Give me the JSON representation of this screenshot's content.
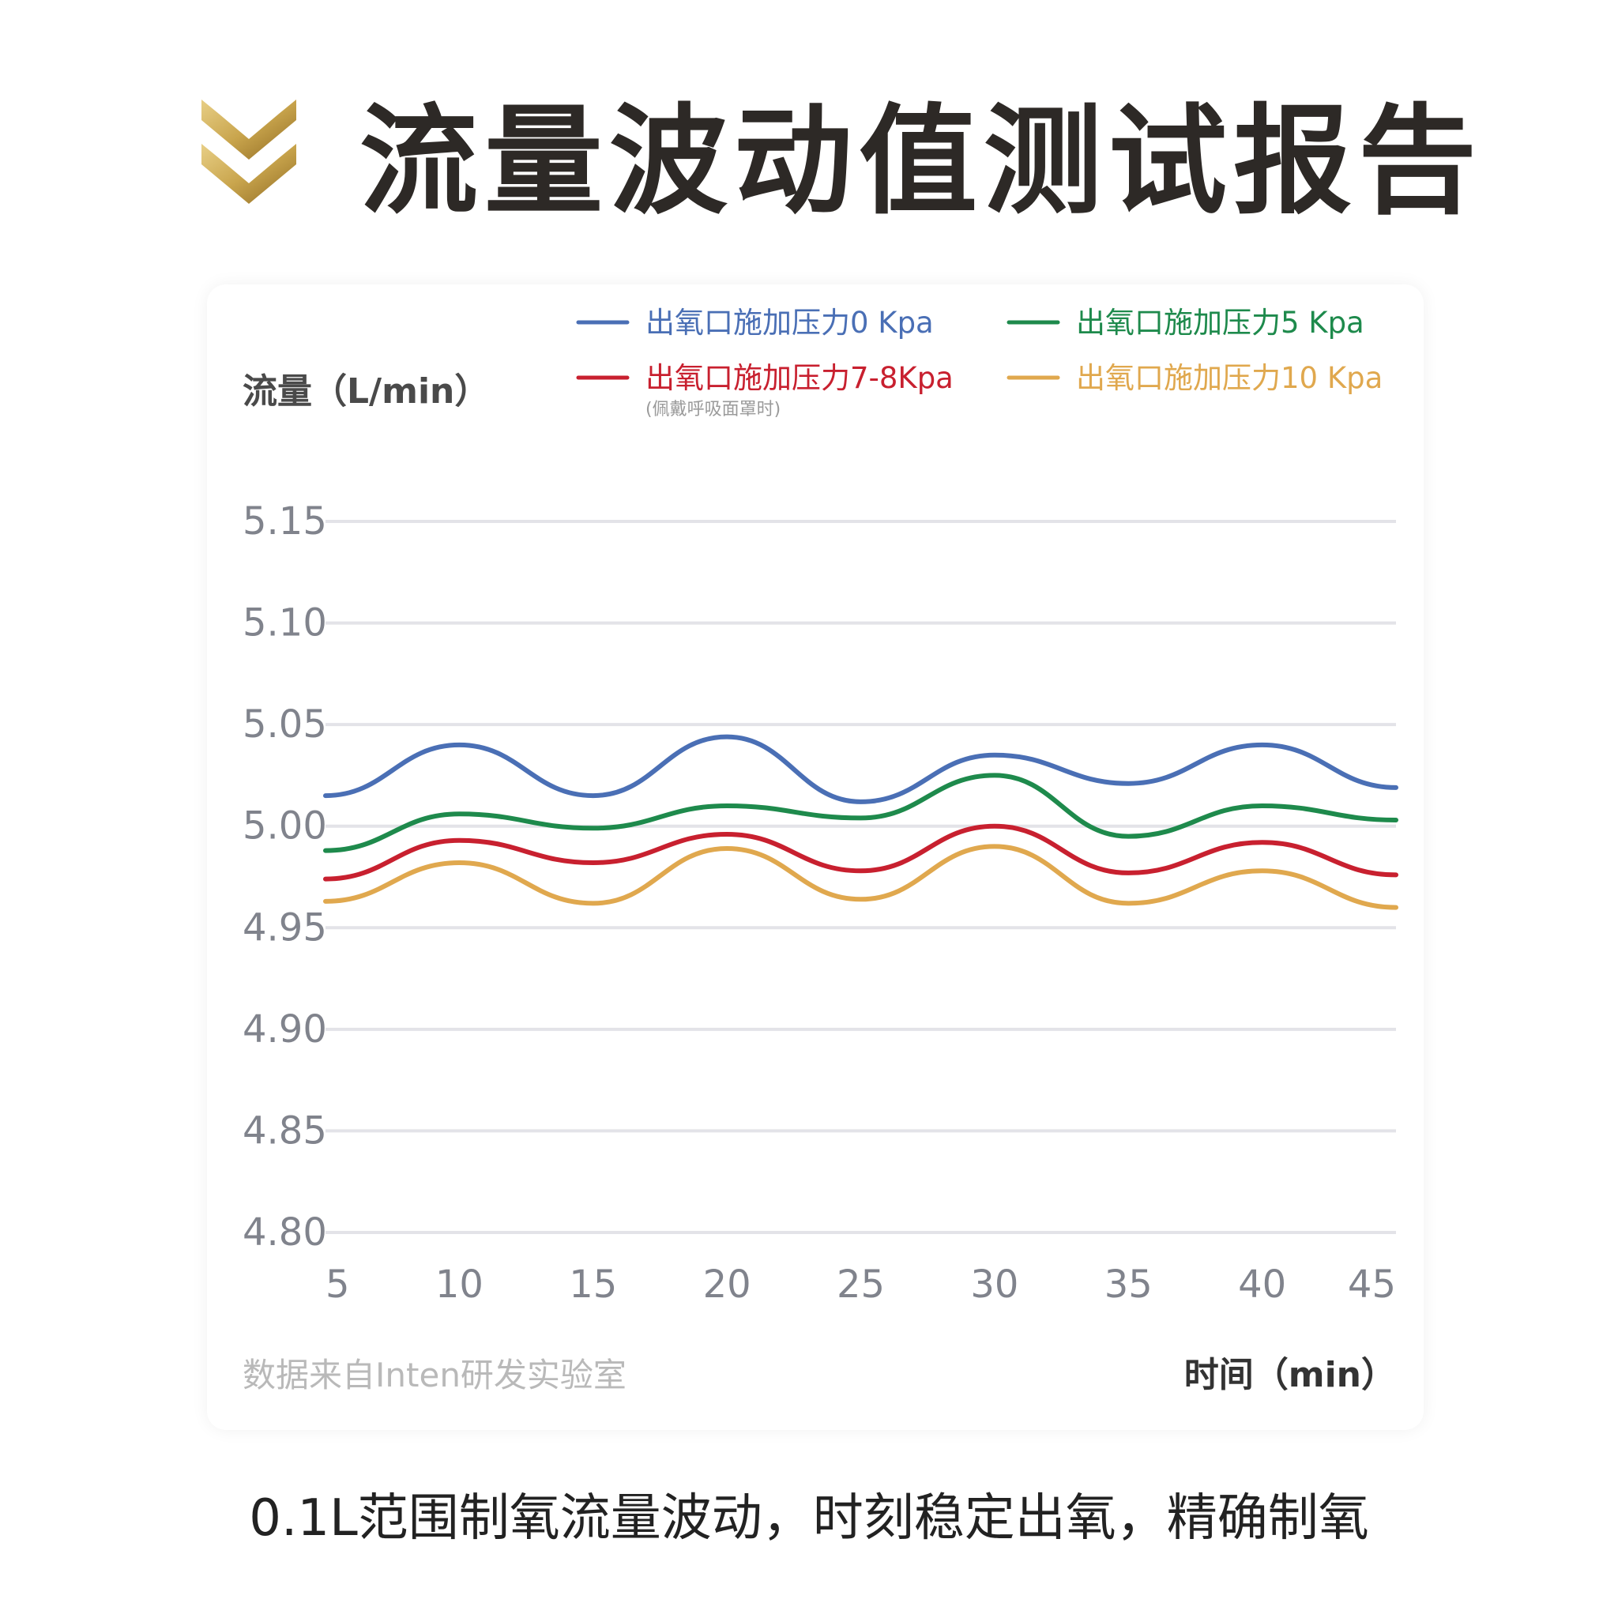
{
  "page": {
    "title": "流量波动值测试报告",
    "caption": "0.1L范围制氧流量波动，时刻稳定出氧，精确制氧",
    "source_note": "数据来自Inten研发实验室",
    "logo_icon": "gold-double-chevron-down-icon",
    "logo_colors": [
      "#c9a54d",
      "#a88230"
    ]
  },
  "chart_data": {
    "type": "line",
    "ylabel": "流量（L/min）",
    "xlabel": "时间（min）",
    "x": [
      5,
      10,
      15,
      20,
      25,
      30,
      35,
      40,
      45
    ],
    "xlim": [
      5,
      45
    ],
    "ylim": [
      4.8,
      5.15
    ],
    "y_ticks": [
      "5.15",
      "5.10",
      "5.05",
      "5.00",
      "4.95",
      "4.90",
      "4.85",
      "4.80"
    ],
    "x_ticks": [
      "5",
      "10",
      "15",
      "20",
      "25",
      "30",
      "35",
      "40",
      "45"
    ],
    "grid": true,
    "legend_position": "top",
    "series": [
      {
        "name": "出氧口施加压力0 Kpa",
        "note": "",
        "color": "#4a6fb5",
        "values": [
          5.015,
          5.04,
          5.015,
          5.044,
          5.012,
          5.035,
          5.021,
          5.04,
          5.019
        ]
      },
      {
        "name": "出氧口施加压力5 Kpa",
        "note": "",
        "color": "#1e8a4c",
        "values": [
          4.988,
          5.006,
          4.999,
          5.01,
          5.004,
          5.025,
          4.995,
          5.01,
          5.003
        ]
      },
      {
        "name": "出氧口施加压力7-8Kpa",
        "note": "(佩戴呼吸面罩时)",
        "color": "#c8202f",
        "values": [
          4.974,
          4.993,
          4.982,
          4.996,
          4.978,
          5.0,
          4.977,
          4.992,
          4.976
        ]
      },
      {
        "name": "出氧口施加压力10 Kpa",
        "note": "",
        "color": "#e0a84e",
        "values": [
          4.963,
          4.982,
          4.962,
          4.989,
          4.964,
          4.99,
          4.962,
          4.978,
          4.96
        ]
      }
    ]
  }
}
